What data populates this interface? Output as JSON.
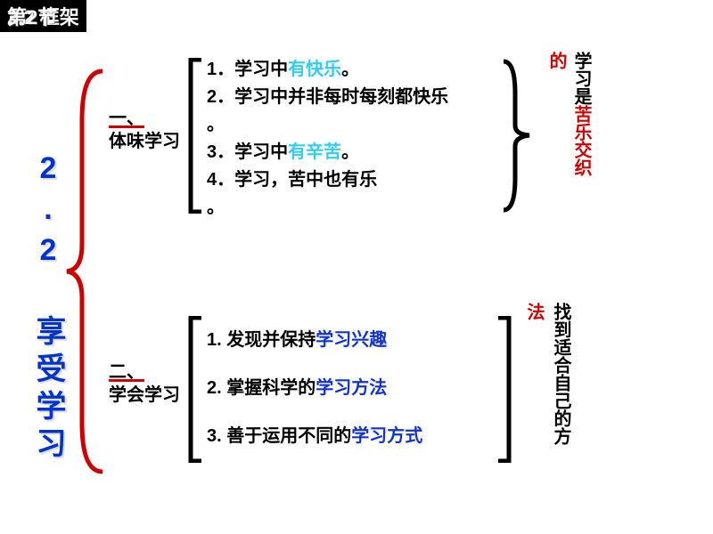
{
  "header": {
    "title1": "2.2 框架",
    "title2": "第2节"
  },
  "mainTitle": "2.2 享受学习",
  "branches": {
    "top": {
      "labelNum": "一、",
      "labelText": "体味学习",
      "items": [
        {
          "num": "1．",
          "pre": "学习中",
          "hl": "有快乐",
          "hlColor": "cyan",
          "post": "。"
        },
        {
          "num": "2．",
          "pre": "学习中并非每时每刻都快乐",
          "hl": "",
          "hlColor": "",
          "post": ""
        },
        {
          "num": "。",
          "pre": "",
          "hl": "",
          "hlColor": "",
          "post": ""
        },
        {
          "num": "3．",
          "pre": "学习中",
          "hl": "有辛苦",
          "hlColor": "cyan",
          "post": "。"
        },
        {
          "num": "4．",
          "pre": "学习，苦中也有乐",
          "hl": "",
          "hlColor": "",
          "post": ""
        },
        {
          "num": "。",
          "pre": "",
          "hl": "",
          "hlColor": "",
          "post": ""
        }
      ],
      "summaryTail": "的",
      "summaryMain": "学习是",
      "summaryHl": "苦乐交织"
    },
    "bottom": {
      "labelNum": "二、",
      "labelText": "学会学习",
      "items": [
        {
          "num": "1. ",
          "pre": "发现并保持",
          "hl": "学习兴趣",
          "hlColor": "blue",
          "post": ""
        },
        {
          "num": "2. ",
          "pre": "掌握科学的",
          "hl": "学习方法",
          "hlColor": "blue",
          "post": ""
        },
        {
          "num": "3. ",
          "pre": "善于运用不同的",
          "hl": "学习方式",
          "hlColor": "blue",
          "post": ""
        }
      ],
      "summaryTail": "法",
      "summaryMain": "找到适合自己的方"
    }
  },
  "colors": {
    "red": "#cc0000",
    "blue": "#1133cc",
    "cyan": "#33ccee",
    "black": "#000000"
  }
}
